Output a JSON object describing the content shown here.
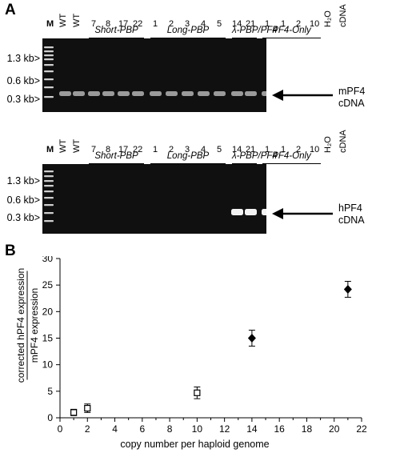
{
  "panel_a": {
    "label": "A",
    "size_markers": [
      "1.3 kb>",
      "0.6 kb>",
      "0.3 kb>"
    ],
    "top_gel": {
      "lanes": [
        "M",
        "WT",
        "WT",
        "7",
        "8",
        "17",
        "22",
        "1",
        "2",
        "3",
        "4",
        "5",
        "14",
        "21",
        "1",
        "1",
        "2",
        "10",
        "H₂O",
        "cDNA"
      ],
      "groups": [
        "Short-PBP",
        "Long-PBP",
        "λ-PBP/PF4",
        "PF4-Only"
      ],
      "product": [
        "mPF4",
        "cDNA"
      ]
    },
    "bottom_gel": {
      "lanes": [
        "M",
        "WT",
        "WT",
        "7",
        "8",
        "17",
        "22",
        "1",
        "2",
        "3",
        "4",
        "5",
        "14",
        "21",
        "1",
        "1",
        "2",
        "10",
        "H₂O",
        "cDNA"
      ],
      "groups": [
        "Short-PBP",
        "Long-PBP",
        "λ-PBP/PF4",
        "PF4-Only"
      ],
      "product": [
        "hPF4",
        "cDNA"
      ]
    }
  },
  "panel_b": {
    "label": "B"
  },
  "chart_data": {
    "type": "scatter",
    "xlabel": "copy number per haploid genome",
    "ylabel_line1": "corrected hPF4 expression",
    "ylabel_line2": "mPF4 expression",
    "xlim": [
      0,
      22
    ],
    "ylim": [
      0,
      30
    ],
    "xticks": [
      "0",
      "2",
      "4",
      "6",
      "8",
      "10",
      "12",
      "14",
      "16",
      "18",
      "20",
      "22"
    ],
    "yticks": [
      "0",
      "5",
      "10",
      "15",
      "20",
      "25",
      "30"
    ],
    "series": [
      {
        "marker": "open-square",
        "points": [
          [
            1,
            1.0,
            0.6
          ],
          [
            2,
            1.8,
            0.8
          ],
          [
            10,
            4.7,
            1.1
          ]
        ]
      },
      {
        "marker": "filled-diamond",
        "points": [
          [
            14,
            15.0,
            1.5
          ],
          [
            21,
            24.2,
            1.5
          ]
        ]
      }
    ]
  }
}
